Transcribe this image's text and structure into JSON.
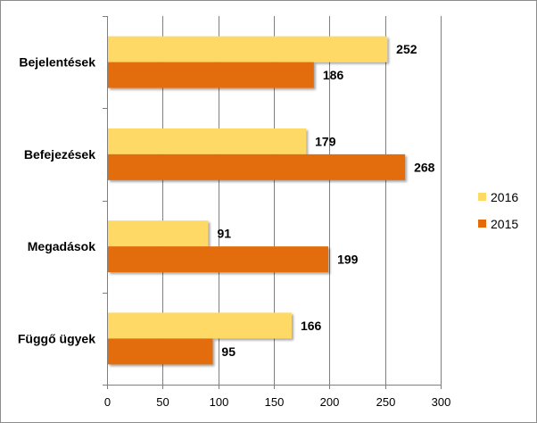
{
  "chart_data": {
    "type": "bar",
    "orientation": "horizontal",
    "categories": [
      "Bejelentések",
      "Befejezések",
      "Megadások",
      "Függő ügyek"
    ],
    "series": [
      {
        "name": "2016",
        "color": "#FFD966",
        "values": [
          252,
          179,
          91,
          166
        ]
      },
      {
        "name": "2015",
        "color": "#E36C09",
        "values": [
          186,
          268,
          199,
          95
        ]
      }
    ],
    "xlim": [
      0,
      300
    ],
    "x_ticks": [
      0,
      50,
      100,
      150,
      200,
      250,
      300
    ],
    "grid": true,
    "legend": {
      "position": "right",
      "order": [
        "2016",
        "2015"
      ]
    }
  }
}
